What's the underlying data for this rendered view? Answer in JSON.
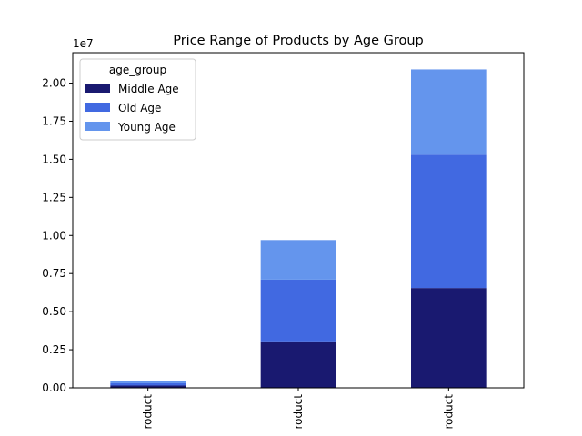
{
  "chart_data": {
    "type": "bar",
    "stacked": true,
    "title": "Price Range of Products by Age Group",
    "xlabel": "",
    "ylabel": "",
    "scale_label": "1e7",
    "categories": [
      "roduct",
      "roduct",
      "roduct"
    ],
    "ylim": [
      0,
      2.2
    ],
    "yticks": [
      0.0,
      0.25,
      0.5,
      0.75,
      1.0,
      1.25,
      1.5,
      1.75,
      2.0
    ],
    "ytick_labels": [
      "0.00",
      "0.25",
      "0.50",
      "0.75",
      "1.00",
      "1.25",
      "1.50",
      "1.75",
      "2.00"
    ],
    "grid": false,
    "legend": {
      "title": "age_group",
      "placement": "top-left"
    },
    "series": [
      {
        "name": "Middle Age",
        "color": "#191970",
        "values": [
          0.015,
          0.305,
          0.655
        ]
      },
      {
        "name": "Old Age",
        "color": "#4169e1",
        "values": [
          0.015,
          0.405,
          0.875
        ]
      },
      {
        "name": "Young Age",
        "color": "#6495ed",
        "values": [
          0.015,
          0.26,
          0.56
        ]
      }
    ]
  }
}
